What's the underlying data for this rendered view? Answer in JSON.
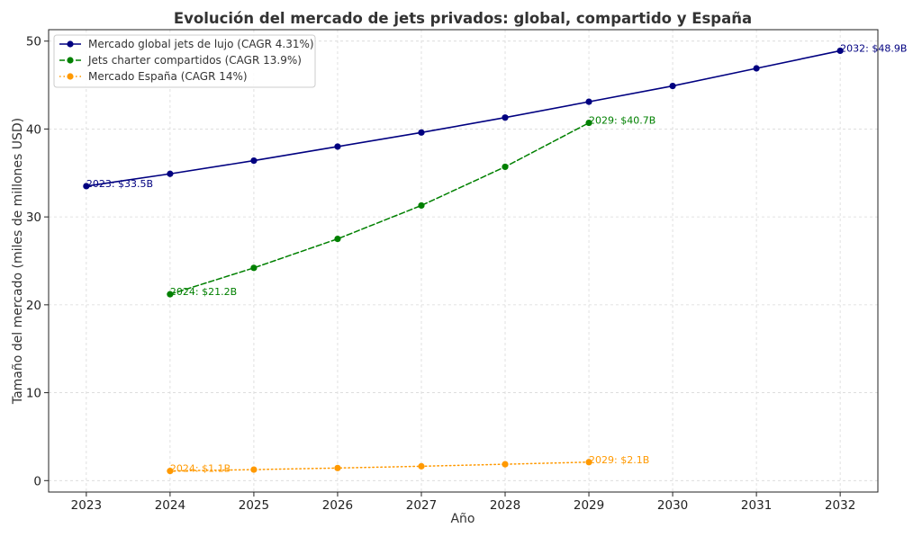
{
  "chart_data": {
    "type": "line",
    "title": "Evolución del mercado de jets privados: global, compartido y España",
    "xlabel": "Año",
    "ylabel": "Tamaño del mercado (miles de millones USD)",
    "xlim": [
      2022.55,
      2032.45
    ],
    "ylim": [
      -1.3,
      51.3
    ],
    "xticks": [
      2023,
      2024,
      2025,
      2026,
      2027,
      2028,
      2029,
      2030,
      2031,
      2032
    ],
    "yticks": [
      0,
      10,
      20,
      30,
      40,
      50
    ],
    "grid": true,
    "legend_position": "top-left",
    "series": [
      {
        "name": "Mercado global jets de lujo (CAGR 4.31%)",
        "color": "#000080",
        "style": "solid",
        "x": [
          2023,
          2024,
          2025,
          2026,
          2027,
          2028,
          2029,
          2030,
          2031,
          2032
        ],
        "values": [
          33.5,
          34.9,
          36.4,
          38.0,
          39.6,
          41.3,
          43.1,
          44.9,
          46.9,
          48.9
        ]
      },
      {
        "name": "Jets charter compartidos (CAGR 13.9%)",
        "color": "#008000",
        "style": "dashed",
        "x": [
          2024,
          2025,
          2026,
          2027,
          2028,
          2029
        ],
        "values": [
          21.2,
          24.2,
          27.5,
          31.3,
          35.7,
          40.7
        ]
      },
      {
        "name": "Mercado España (CAGR 14%)",
        "color": "#ff9900",
        "style": "dotted",
        "x": [
          2024,
          2025,
          2026,
          2027,
          2028,
          2029
        ],
        "values": [
          1.1,
          1.25,
          1.43,
          1.63,
          1.86,
          2.1
        ]
      }
    ],
    "annotations": [
      {
        "text": "2023: $33.5B",
        "x": 2023,
        "y": 33.5,
        "series": 0
      },
      {
        "text": "2032: $48.9B",
        "x": 2032,
        "y": 48.9,
        "series": 0
      },
      {
        "text": "2024: $21.2B",
        "x": 2024,
        "y": 21.2,
        "series": 1
      },
      {
        "text": "2029: $40.7B",
        "x": 2029,
        "y": 40.7,
        "series": 1
      },
      {
        "text": "2024: $1.1B",
        "x": 2024,
        "y": 1.1,
        "series": 2
      },
      {
        "text": "2029: $2.1B",
        "x": 2029,
        "y": 2.1,
        "series": 2
      }
    ]
  }
}
